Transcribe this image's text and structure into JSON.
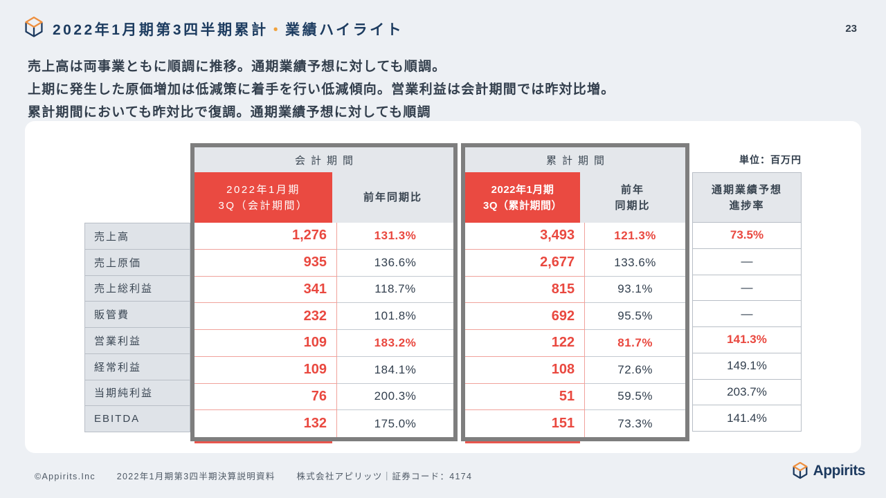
{
  "page": {
    "number": "23"
  },
  "header": {
    "title_part1": "2022年1月期第3四半期累計",
    "title_separator": "・",
    "title_part2": "業績ハイライト"
  },
  "summary": {
    "line1": "売上高は両事業ともに順調に推移。通期業績予想に対しても順調。",
    "line2": "上期に発生した原価増加は低減策に着手を行い低減傾向。営業利益は会計期間では昨対比増。",
    "line3": "累計期間においても昨対比で復調。通期業績予想に対しても順調"
  },
  "table": {
    "unit_label": "単位：百万円",
    "group_headers": {
      "accounting": "会計期間",
      "cumulative": "累計期間"
    },
    "columns": {
      "fiscal_line1": "2022年1月期",
      "fiscal_line2": "3Q（会計期間）",
      "fiscal_yoy": "前年同期比",
      "cumulative_line1": "2022年1月期",
      "cumulative_line2": "3Q（累計期間）",
      "cum_yoy_line1": "前年",
      "cum_yoy_line2": "同期比",
      "progress_line1": "通期業績予想",
      "progress_line2": "進捗率"
    },
    "rows": [
      {
        "label": "売上高",
        "fiscal_value": "1,276",
        "fiscal_yoy": "131.3%",
        "cum_value": "3,493",
        "cum_yoy": "121.3%",
        "progress": "73.5%",
        "highlight": true
      },
      {
        "label": "売上原価",
        "fiscal_value": "935",
        "fiscal_yoy": "136.6%",
        "cum_value": "2,677",
        "cum_yoy": "133.6%",
        "progress": "—",
        "highlight": false
      },
      {
        "label": "売上総利益",
        "fiscal_value": "341",
        "fiscal_yoy": "118.7%",
        "cum_value": "815",
        "cum_yoy": "93.1%",
        "progress": "—",
        "highlight": false
      },
      {
        "label": "販管費",
        "fiscal_value": "232",
        "fiscal_yoy": "101.8%",
        "cum_value": "692",
        "cum_yoy": "95.5%",
        "progress": "—",
        "highlight": false
      },
      {
        "label": "営業利益",
        "fiscal_value": "109",
        "fiscal_yoy": "183.2%",
        "cum_value": "122",
        "cum_yoy": "81.7%",
        "progress": "141.3%",
        "highlight": true
      },
      {
        "label": "経常利益",
        "fiscal_value": "109",
        "fiscal_yoy": "184.1%",
        "cum_value": "108",
        "cum_yoy": "72.6%",
        "progress": "149.1%",
        "highlight": false
      },
      {
        "label": "当期純利益",
        "fiscal_value": "76",
        "fiscal_yoy": "200.3%",
        "cum_value": "51",
        "cum_yoy": "59.5%",
        "progress": "203.7%",
        "highlight": false
      },
      {
        "label": "EBITDA",
        "fiscal_value": "132",
        "fiscal_yoy": "175.0%",
        "cum_value": "151",
        "cum_yoy": "73.3%",
        "progress": "141.4%",
        "highlight": false
      }
    ]
  },
  "footer": {
    "copyright": "©Appirits.Inc",
    "document_title": "2022年1月期第3四半期決算説明資料",
    "company_info": "株式会社アピリッツ｜証券コード：4174",
    "logo_text": "Appirits"
  },
  "colors": {
    "accent_red": "#EA4A41",
    "navy": "#1D3C60",
    "thick_border_gray": "#7E7E7E",
    "header_gray": "#E4E7EB",
    "page_background": "#EDF0F4"
  }
}
